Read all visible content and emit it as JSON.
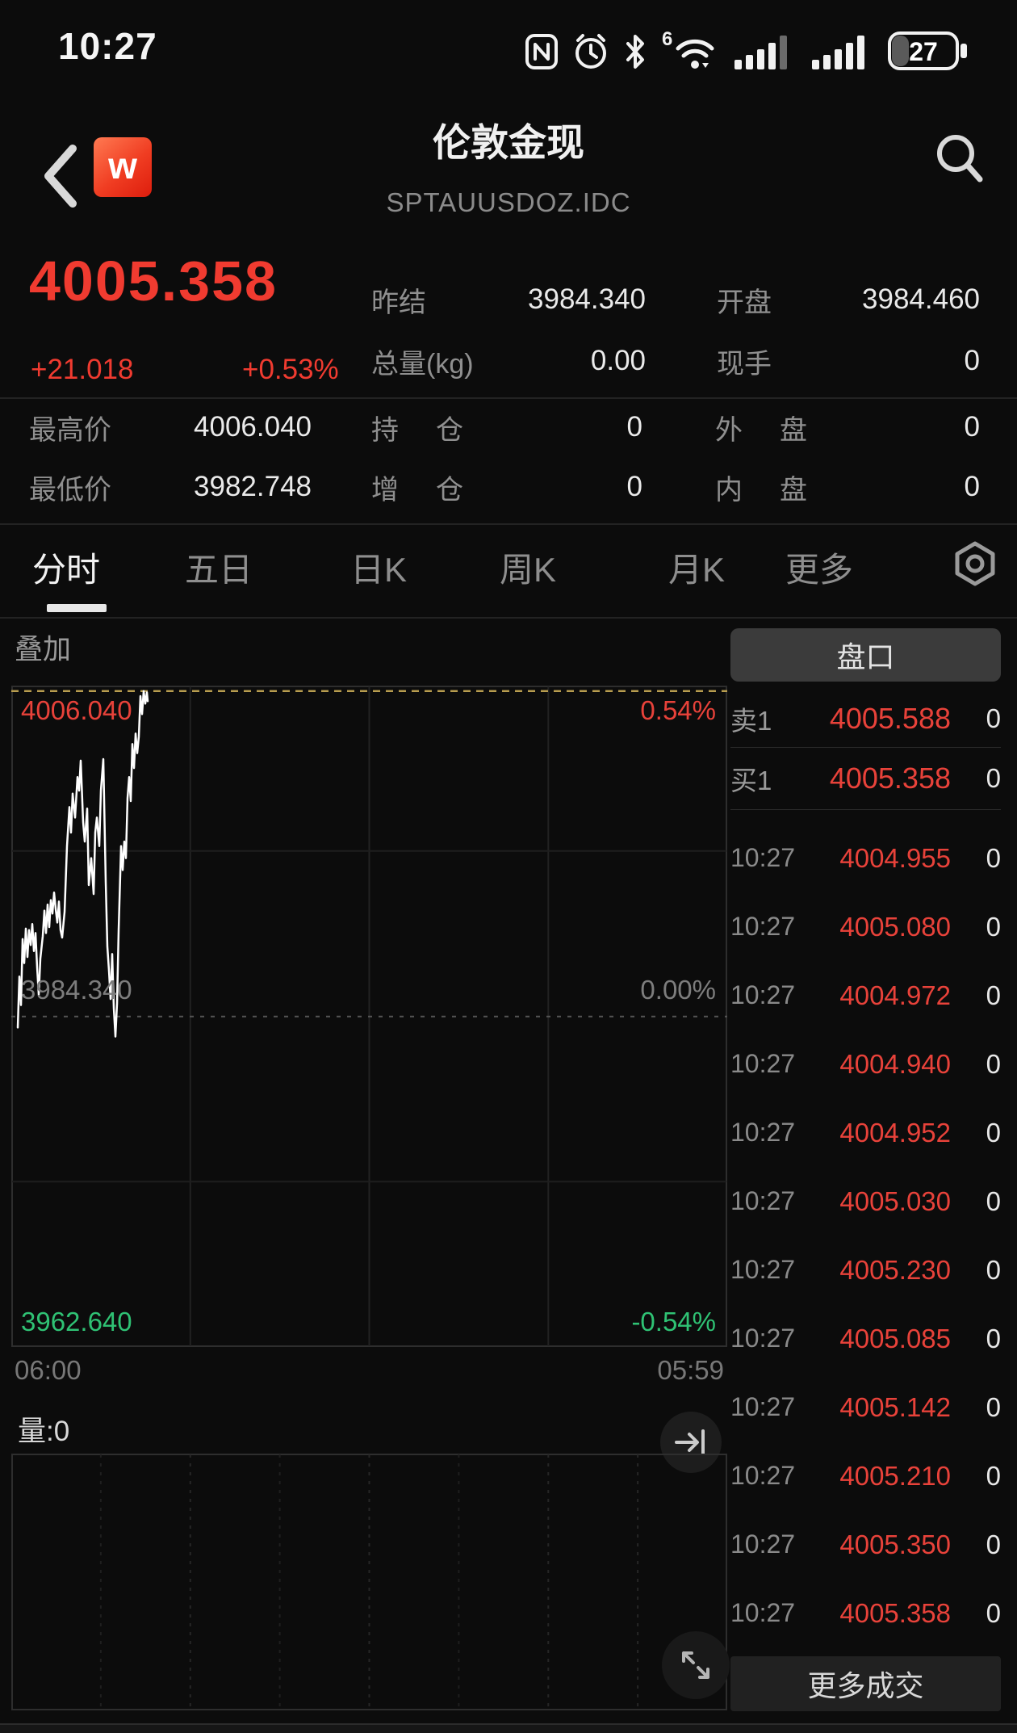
{
  "status_bar": {
    "time": "10:27",
    "wifi_badge": "6",
    "battery_level": "27"
  },
  "header": {
    "title": "伦敦金现",
    "subtitle": "SPTAUUSDOZ.IDC",
    "logo_letter": "w"
  },
  "quote": {
    "last_price": "4005.358",
    "change": "+21.018",
    "change_pct": "+0.53%",
    "fields": [
      {
        "label": "昨结",
        "value": "3984.340"
      },
      {
        "label": "开盘",
        "value": "3984.460"
      },
      {
        "label": "总量(kg)",
        "value": "0.00"
      },
      {
        "label": "现手",
        "value": "0"
      }
    ],
    "stats": [
      {
        "label": "最高价",
        "value": "4006.040"
      },
      {
        "label": "持仓",
        "value": "0"
      },
      {
        "label": "外盘",
        "value": "0"
      },
      {
        "label": "最低价",
        "value": "3982.748"
      },
      {
        "label": "增仓",
        "value": "0"
      },
      {
        "label": "内盘",
        "value": "0"
      }
    ]
  },
  "tabs": {
    "items": [
      "分时",
      "五日",
      "日K",
      "周K",
      "月K",
      "更多"
    ],
    "active": "分时"
  },
  "chart": {
    "overlay_label": "叠加"
  },
  "time_axis": {
    "start": "06:00",
    "end": "05:59"
  },
  "volume": {
    "label": "量:0"
  },
  "order_panel": {
    "header": "盘口",
    "ask": {
      "label": "卖1",
      "price": "4005.588",
      "volume": "0"
    },
    "bid": {
      "label": "买1",
      "price": "4005.358",
      "volume": "0"
    },
    "trades": [
      {
        "time": "10:27",
        "price": "4004.955",
        "volume": "0"
      },
      {
        "time": "10:27",
        "price": "4005.080",
        "volume": "0"
      },
      {
        "time": "10:27",
        "price": "4004.972",
        "volume": "0"
      },
      {
        "time": "10:27",
        "price": "4004.940",
        "volume": "0"
      },
      {
        "time": "10:27",
        "price": "4004.952",
        "volume": "0"
      },
      {
        "time": "10:27",
        "price": "4005.030",
        "volume": "0"
      },
      {
        "time": "10:27",
        "price": "4005.230",
        "volume": "0"
      },
      {
        "time": "10:27",
        "price": "4005.085",
        "volume": "0"
      },
      {
        "time": "10:27",
        "price": "4005.142",
        "volume": "0"
      },
      {
        "time": "10:27",
        "price": "4005.210",
        "volume": "0"
      },
      {
        "time": "10:27",
        "price": "4005.350",
        "volume": "0"
      },
      {
        "time": "10:27",
        "price": "4005.358",
        "volume": "0"
      }
    ],
    "more_label": "更多成交"
  },
  "colors": {
    "red": "#e8423a",
    "red_big": "#f03b30",
    "green": "#2fc274",
    "high_line": "#b89d4f"
  },
  "chart_data": [
    {
      "type": "line",
      "title": "伦敦金现 分时",
      "x_range": [
        "06:00",
        "05:59"
      ],
      "prev_close": 3984.34,
      "open": 3984.46,
      "high": 4006.04,
      "low": 3982.748,
      "last": 4005.358,
      "y_axis": {
        "top": 4006.4,
        "bottom": 3962.3
      },
      "y_labels": {
        "high": "4006.040",
        "high_pct": "0.54%",
        "mid": "3984.340",
        "mid_pct": "0.00%",
        "low": "3962.640",
        "low_pct": "-0.54%"
      },
      "grid": "quarters",
      "points": [
        [
          8,
          3983.6
        ],
        [
          10,
          3987.0
        ],
        [
          12,
          3985.1
        ],
        [
          14,
          3989.5
        ],
        [
          16,
          3987.9
        ],
        [
          18,
          3990.2
        ],
        [
          20,
          3988.3
        ],
        [
          22,
          3990.1
        ],
        [
          24,
          3989.1
        ],
        [
          26,
          3990.5
        ],
        [
          28,
          3988.7
        ],
        [
          30,
          3989.9
        ],
        [
          32,
          3987.6
        ],
        [
          34,
          3985.8
        ],
        [
          36,
          3988.2
        ],
        [
          39,
          3989.7
        ],
        [
          41,
          3991.4
        ],
        [
          43,
          3989.9
        ],
        [
          45,
          3991.8
        ],
        [
          47,
          3990.3
        ],
        [
          49,
          3992.1
        ],
        [
          51,
          3991.2
        ],
        [
          53,
          3992.6
        ],
        [
          55,
          3991.5
        ],
        [
          57,
          3990.6
        ],
        [
          59,
          3992.0
        ],
        [
          61,
          3990.1
        ],
        [
          63,
          3989.6
        ],
        [
          66,
          3991.3
        ],
        [
          69,
          3995.7
        ],
        [
          72,
          3998.3
        ],
        [
          74,
          3996.6
        ],
        [
          76,
          3999.2
        ],
        [
          79,
          3997.6
        ],
        [
          82,
          4000.3
        ],
        [
          84,
          3999.4
        ],
        [
          86,
          4001.4
        ],
        [
          89,
          3997.3
        ],
        [
          91,
          3996.0
        ],
        [
          94,
          3998.2
        ],
        [
          96,
          3993.1
        ],
        [
          99,
          3994.9
        ],
        [
          102,
          3992.5
        ],
        [
          104,
          3996.6
        ],
        [
          106,
          3997.6
        ],
        [
          109,
          3995.7
        ],
        [
          111,
          3999.4
        ],
        [
          114,
          4001.5
        ],
        [
          117,
          3993.3
        ],
        [
          119,
          3989.0
        ],
        [
          121,
          3987.4
        ],
        [
          123,
          3985.5
        ],
        [
          125,
          3988.5
        ],
        [
          127,
          3984.9
        ],
        [
          129,
          3983.0
        ],
        [
          131,
          3985.2
        ],
        [
          133,
          3990.1
        ],
        [
          136,
          3995.7
        ],
        [
          138,
          3994.1
        ],
        [
          140,
          3996.0
        ],
        [
          142,
          3994.9
        ],
        [
          144,
          3998.9
        ],
        [
          146,
          4000.3
        ],
        [
          148,
          3998.7
        ],
        [
          150,
          4002.5
        ],
        [
          152,
          4000.9
        ],
        [
          154,
          4003.2
        ],
        [
          156,
          4001.9
        ],
        [
          158,
          4003.0
        ],
        [
          160,
          4005.7
        ],
        [
          162,
          4004.5
        ],
        [
          164,
          4006.04
        ],
        [
          166,
          4005.2
        ],
        [
          168,
          4005.95
        ],
        [
          169,
          4005.36
        ]
      ]
    },
    {
      "type": "bar",
      "title": "成交量",
      "label": "量:0",
      "values": []
    }
  ]
}
